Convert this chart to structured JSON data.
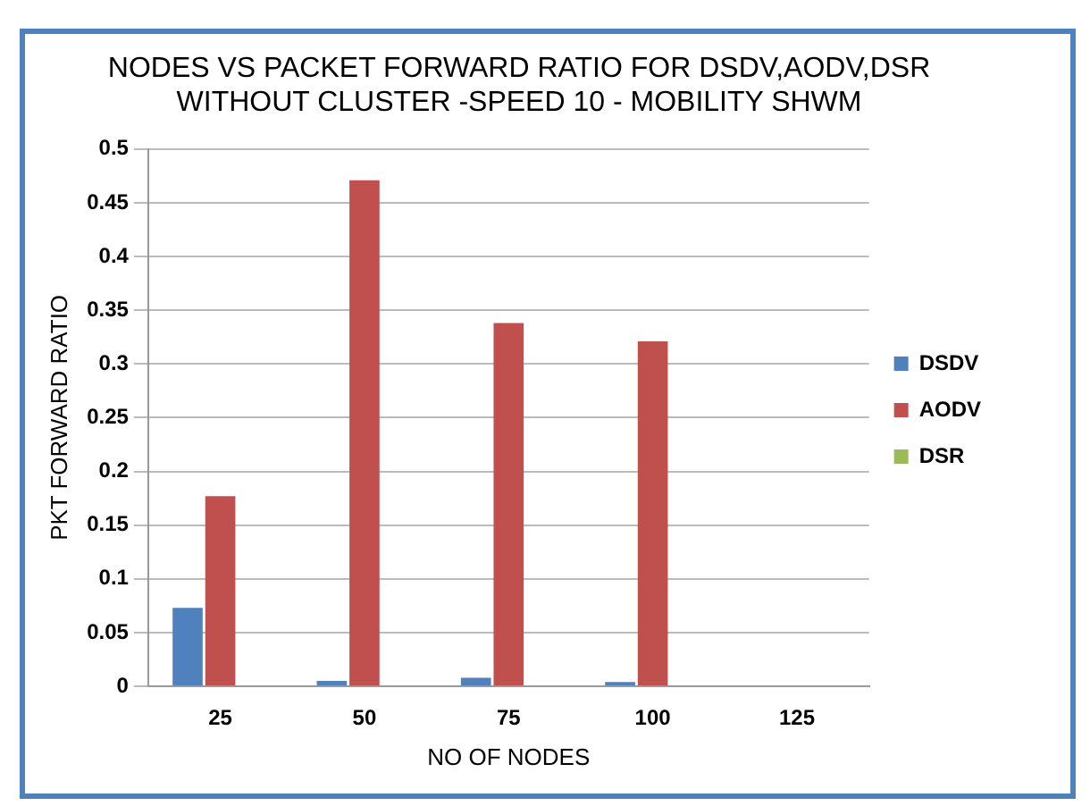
{
  "chart_data": {
    "type": "bar",
    "title": [
      "NODES VS PACKET FORWARD RATIO FOR DSDV,AODV,DSR",
      "WITHOUT CLUSTER -SPEED 10 - MOBILITY SHWM"
    ],
    "xlabel": "NO OF NODES",
    "ylabel": "PKT FORWARD RATIO",
    "categories": [
      "25",
      "50",
      "75",
      "100",
      "125"
    ],
    "series": [
      {
        "name": "DSDV",
        "color": "#4f81bd",
        "values": [
          0.073,
          0.005,
          0.008,
          0.004,
          0
        ]
      },
      {
        "name": "AODV",
        "color": "#c0504d",
        "values": [
          0.177,
          0.471,
          0.338,
          0.321,
          0
        ]
      },
      {
        "name": "DSR",
        "color": "#9bbb59",
        "values": [
          0,
          0,
          0,
          0,
          0
        ]
      }
    ],
    "ylim": [
      0,
      0.5
    ],
    "yticks": [
      0,
      0.05,
      0.1,
      0.15,
      0.2,
      0.25,
      0.3,
      0.35,
      0.4,
      0.45,
      0.5
    ],
    "grid": "y",
    "legend": "right"
  }
}
